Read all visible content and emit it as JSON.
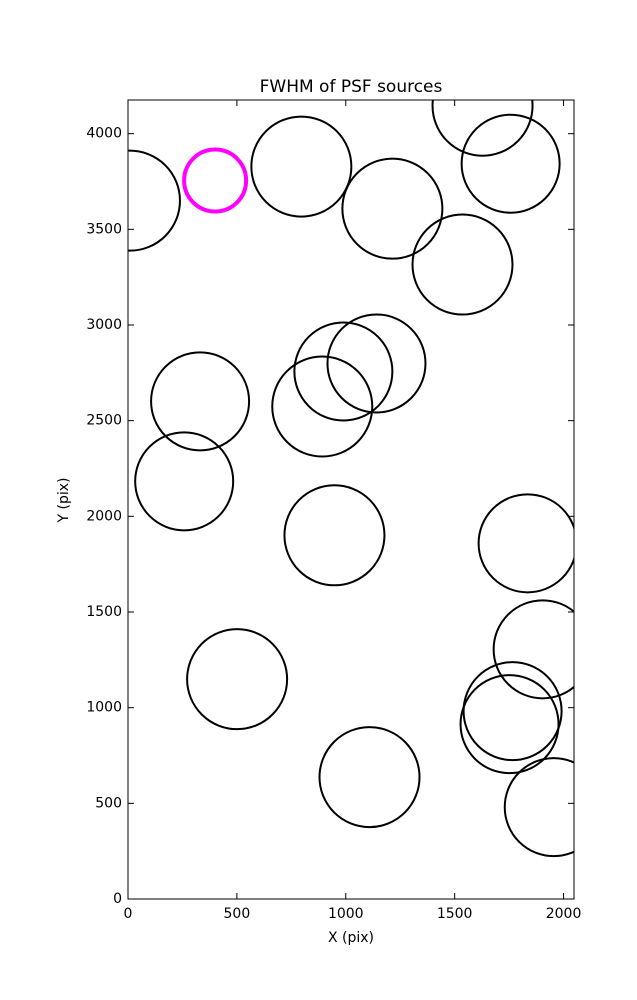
{
  "chart_data": {
    "type": "scatter",
    "title": "FWHM of PSF sources",
    "x_label": "X (pix)",
    "y_label": "Y (pix)",
    "xlim": [
      0,
      2048
    ],
    "ylim": [
      0,
      4176
    ],
    "xticks": [
      0,
      500,
      1000,
      1500,
      2000
    ],
    "yticks": [
      0,
      500,
      1000,
      1500,
      2000,
      2500,
      3000,
      3500,
      4000
    ],
    "series": [
      {
        "color": "#000000",
        "x": [
          9,
          796,
          1628,
          1757,
          1214,
          1536,
          1141,
          989,
          892,
          331,
          258,
          948,
          1835,
          1904,
          1766,
          1752,
          501,
          1109,
          1955
        ],
        "values": [
          3650,
          3828,
          4146,
          3843,
          3608,
          3316,
          2799,
          2757,
          2574,
          2601,
          2183,
          1901,
          1859,
          1305,
          982,
          914,
          1149,
          637,
          480
        ],
        "sizes": [
          50,
          50,
          50,
          49,
          50,
          50,
          49,
          49,
          50,
          49,
          49,
          50,
          49,
          49,
          49,
          49,
          50,
          50,
          49
        ]
      },
      {
        "color": "#ff00ff",
        "x": [
          400
        ],
        "values": [
          3755
        ],
        "sizes": [
          31
        ]
      }
    ]
  }
}
